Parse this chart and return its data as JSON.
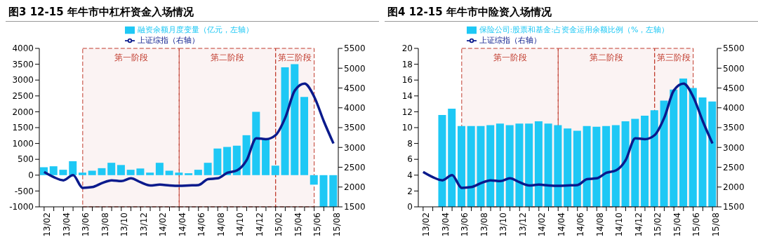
{
  "chart_data": [
    {
      "type": "bar",
      "title": "图3  12-15 年牛市中杠杆资金入场情况",
      "categories": [
        "13/02",
        null,
        "13/04",
        null,
        "13/06",
        null,
        "13/08",
        null,
        "13/10",
        null,
        "13/12",
        null,
        "14/02",
        null,
        "14/04",
        null,
        "14/06",
        null,
        "14/08",
        null,
        "14/10",
        null,
        "14/12",
        null,
        "15/02",
        null,
        "15/04",
        null,
        "15/06",
        null,
        "15/08"
      ],
      "series": [
        {
          "name": "融资余额月度变量（亿元，左轴）",
          "color": "#1ec8f5",
          "values": [
            250,
            280,
            170,
            440,
            80,
            140,
            220,
            390,
            320,
            170,
            210,
            80,
            390,
            140,
            80,
            60,
            170,
            390,
            840,
            890,
            930,
            1260,
            2000,
            1150,
            300,
            3400,
            3500,
            2470,
            -300,
            -1000,
            -1000
          ]
        },
        {
          "name": "上证综指（右轴）",
          "type": "line",
          "axis": "y2",
          "color": "#0a1a8c",
          "values": [
            2380,
            2250,
            2170,
            2300,
            1980,
            2000,
            2100,
            2170,
            2150,
            2220,
            2120,
            2040,
            2060,
            2040,
            2030,
            2040,
            2050,
            2200,
            2220,
            2360,
            2420,
            2680,
            3230,
            3210,
            3310,
            3750,
            4440,
            4610,
            4280,
            3660,
            3100
          ]
        }
      ],
      "ylim": [
        -1000,
        4000
      ],
      "yticks": [
        -1000,
        -500,
        0,
        500,
        1000,
        1500,
        2000,
        2500,
        3000,
        3500,
        4000
      ],
      "y2lim": [
        1500,
        5500
      ],
      "y2ticks": [
        1500,
        2000,
        2500,
        3000,
        3500,
        4000,
        4500,
        5000,
        5500
      ],
      "bands": [
        {
          "axis": "x",
          "from": "13/06",
          "to": "14/04",
          "label": "第一阶段",
          "color": "#c0392b"
        },
        {
          "axis": "x",
          "from": "14/04",
          "to": "15/02",
          "label": "第二阶段",
          "color": "#c0392b"
        },
        {
          "axis": "x",
          "from": "15/02",
          "to": "15/06",
          "label": "第三阶段",
          "color": "#c0392b"
        }
      ],
      "legend": "top",
      "marker": "none",
      "grid": false
    },
    {
      "type": "bar",
      "title": "图4  12-15 年牛市中险资入场情况",
      "categories": [
        "13/02",
        null,
        "13/04",
        null,
        "13/06",
        null,
        "13/08",
        null,
        "13/10",
        null,
        "13/12",
        null,
        "14/02",
        null,
        "14/04",
        null,
        "14/06",
        null,
        "14/08",
        null,
        "14/10",
        null,
        "14/12",
        null,
        "15/02",
        null,
        "15/04",
        null,
        "15/06",
        null,
        "15/08"
      ],
      "series": [
        {
          "name": "保险公司:股票和基金:占资金运用余额比例（%，左轴）",
          "color": "#1ec8f5",
          "values": [
            null,
            null,
            11.6,
            12.4,
            10.2,
            10.2,
            10.2,
            10.3,
            10.5,
            10.3,
            10.5,
            10.5,
            10.8,
            10.5,
            10.3,
            9.9,
            9.6,
            10.2,
            10.1,
            10.2,
            10.3,
            10.8,
            11.1,
            11.5,
            12.2,
            13.4,
            14.8,
            16.2,
            15.0,
            13.8,
            13.3
          ]
        },
        {
          "name": "上证综指（右轴）",
          "type": "line",
          "axis": "y2",
          "color": "#0a1a8c",
          "values": [
            2380,
            2250,
            2170,
            2300,
            1980,
            2000,
            2100,
            2170,
            2150,
            2220,
            2120,
            2040,
            2060,
            2040,
            2030,
            2040,
            2050,
            2200,
            2220,
            2360,
            2420,
            2680,
            3230,
            3210,
            3310,
            3750,
            4440,
            4610,
            4280,
            3660,
            3100
          ]
        }
      ],
      "ylim": [
        0,
        20
      ],
      "yticks": [
        0,
        2,
        4,
        6,
        8,
        10,
        12,
        14,
        16,
        18,
        20
      ],
      "y2lim": [
        1500,
        5500
      ],
      "y2ticks": [
        1500,
        2000,
        2500,
        3000,
        3500,
        4000,
        4500,
        5000,
        5500
      ],
      "bands": [
        {
          "axis": "x",
          "from": "13/06",
          "to": "14/04",
          "label": "第一阶段",
          "color": "#c0392b"
        },
        {
          "axis": "x",
          "from": "14/04",
          "to": "15/02",
          "label": "第二阶段",
          "color": "#c0392b"
        },
        {
          "axis": "x",
          "from": "15/02",
          "to": "15/06",
          "label": "第三阶段",
          "color": "#c0392b"
        }
      ],
      "legend": "top",
      "marker": "none",
      "grid": false
    }
  ]
}
